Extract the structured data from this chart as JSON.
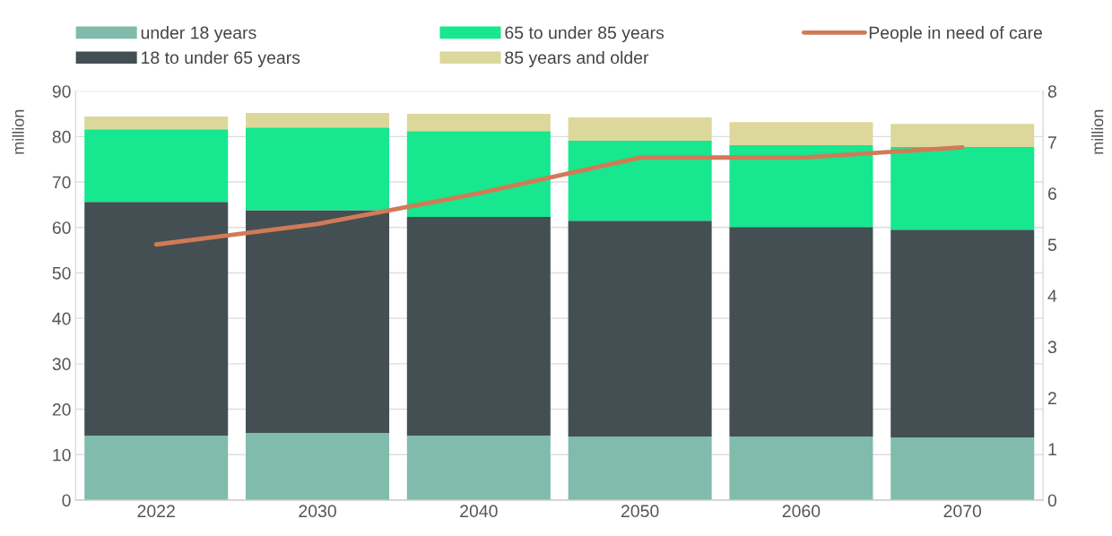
{
  "chart_data": {
    "type": "bar",
    "stacked": true,
    "ylabel": "million",
    "y2label": "million",
    "categories": [
      "2022",
      "2030",
      "2040",
      "2050",
      "2060",
      "2070"
    ],
    "series": [
      {
        "name": "under 18 years",
        "color": "#80bbab",
        "values": [
          14.2,
          14.8,
          14.2,
          14.0,
          14.0,
          13.8
        ]
      },
      {
        "name": "18 to under 65 years",
        "color": "#434f53",
        "values": [
          51.4,
          49.0,
          48.1,
          47.5,
          46.1,
          45.7
        ]
      },
      {
        "name": "65 to under 85 years",
        "color": "#17e78f",
        "values": [
          16.0,
          18.2,
          18.9,
          17.6,
          18.0,
          18.2
        ]
      },
      {
        "name": "85 years and older",
        "color": "#dcd89b",
        "values": [
          2.8,
          3.2,
          3.8,
          5.1,
          5.1,
          5.1
        ]
      },
      {
        "name": "People in need of care",
        "type": "line",
        "axis": "y2",
        "color": "#d27a57",
        "values": [
          5.0,
          5.4,
          6.0,
          6.7,
          6.7,
          6.9
        ]
      }
    ],
    "ylim": [
      0,
      90
    ],
    "yticks": [
      0,
      10,
      20,
      30,
      40,
      50,
      60,
      70,
      80,
      90
    ],
    "y2lim": [
      0,
      8
    ],
    "y2ticks": [
      0,
      1,
      2,
      3,
      4,
      5,
      6,
      7,
      8
    ],
    "grid": "y",
    "legend": "top",
    "marker": "none",
    "line_style": "solid"
  }
}
